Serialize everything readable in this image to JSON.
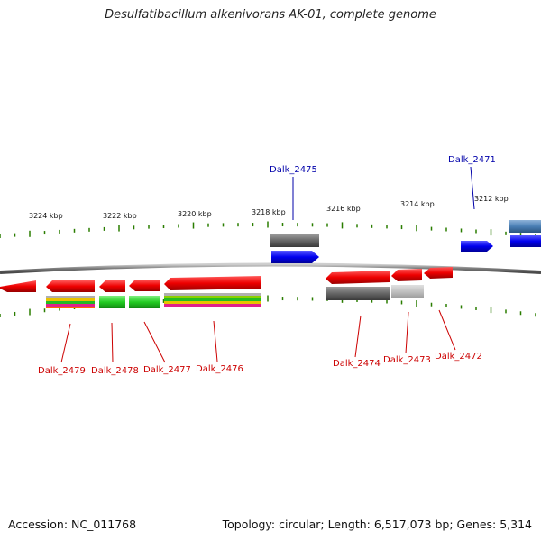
{
  "title": "Desulfatibacillum alkenivorans AK-01, complete genome",
  "footer": {
    "accession": "Accession: NC_011768",
    "stats": "Topology: circular; Length: 6,517,073 bp; Genes: 5,314"
  },
  "colors": {
    "backbone": "#8a8a8a",
    "tick": "#2a7d00",
    "forward_cds": "#0000ee",
    "reverse_cds": "#ee0000",
    "forward_label": "#0000aa",
    "reverse_label": "#cc0000"
  },
  "scale_labels": [
    "3224 kbp",
    "3222 kbp",
    "3220 kbp",
    "3218 kbp",
    "3216 kbp",
    "3214 kbp",
    "3212 kbp"
  ],
  "forward_labels": [
    "Dalk_2475",
    "Dalk_2471"
  ],
  "reverse_labels": [
    "Dalk_2479",
    "Dalk_2478",
    "Dalk_2477",
    "Dalk_2476",
    "Dalk_2474",
    "Dalk_2473",
    "Dalk_2472"
  ]
}
